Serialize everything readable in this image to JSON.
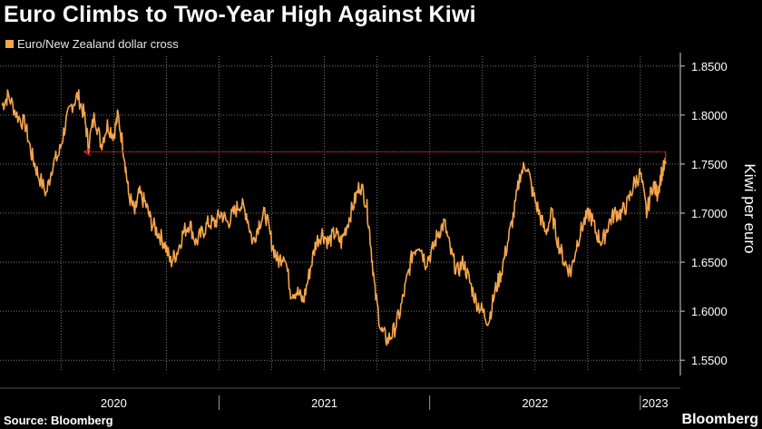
{
  "header": {
    "title": "Euro Climbs to Two-Year High Against Kiwi",
    "legend_label": "Euro/New Zealand dollar cross"
  },
  "footer": {
    "source": "Source: Bloomberg",
    "brand": "Bloomberg"
  },
  "colors": {
    "background": "#000000",
    "series": "#f5a54a",
    "arrow": "#e0242b",
    "grid": "#7a7a7a",
    "text": "#ffffff"
  },
  "chart_data": {
    "type": "line",
    "title": "Euro Climbs to Two-Year High Against Kiwi",
    "ylabel": "Kiwi per euro",
    "xlabel": "",
    "ylim": [
      1.54,
      1.86
    ],
    "xlim": [
      2019.96,
      2023.19
    ],
    "y_ticks": [
      1.55,
      1.6,
      1.65,
      1.7,
      1.75,
      1.8,
      1.85
    ],
    "y_tick_labels": [
      "1.5500",
      "1.6000",
      "1.6500",
      "1.7000",
      "1.7500",
      "1.8000",
      "1.8500"
    ],
    "x_tick_labels": [
      "2020",
      "2021",
      "2022",
      "2023"
    ],
    "x_tick_centers": [
      2020.5,
      2021.5,
      2022.5,
      2023.07
    ],
    "x_year_boundaries": [
      2021.0,
      2022.0,
      2023.0
    ],
    "grid": "horizontal dotted and vertical dotted",
    "y_axis_position": "right",
    "series": [
      {
        "name": "Euro/New Zealand dollar cross",
        "color": "#f5a54a",
        "x": [
          2019.97,
          2020.0,
          2020.04,
          2020.08,
          2020.11,
          2020.14,
          2020.18,
          2020.21,
          2020.24,
          2020.27,
          2020.3,
          2020.33,
          2020.36,
          2020.38,
          2020.41,
          2020.44,
          2020.47,
          2020.5,
          2020.52,
          2020.55,
          2020.57,
          2020.6,
          2020.62,
          2020.65,
          2020.68,
          2020.71,
          2020.74,
          2020.77,
          2020.8,
          2020.83,
          2020.86,
          2020.89,
          2020.92,
          2020.95,
          2020.98,
          2021.01,
          2021.04,
          2021.07,
          2021.1,
          2021.13,
          2021.16,
          2021.19,
          2021.22,
          2021.25,
          2021.28,
          2021.31,
          2021.34,
          2021.37,
          2021.4,
          2021.43,
          2021.46,
          2021.49,
          2021.52,
          2021.55,
          2021.58,
          2021.61,
          2021.64,
          2021.67,
          2021.7,
          2021.72,
          2021.74,
          2021.77,
          2021.8,
          2021.83,
          2021.86,
          2021.89,
          2021.92,
          2021.95,
          2021.98,
          2022.01,
          2022.04,
          2022.07,
          2022.1,
          2022.13,
          2022.16,
          2022.19,
          2022.22,
          2022.25,
          2022.28,
          2022.31,
          2022.34,
          2022.37,
          2022.4,
          2022.43,
          2022.46,
          2022.49,
          2022.52,
          2022.55,
          2022.58,
          2022.61,
          2022.64,
          2022.67,
          2022.7,
          2022.73,
          2022.76,
          2022.79,
          2022.82,
          2022.85,
          2022.88,
          2022.91,
          2022.94,
          2022.97,
          2023.0,
          2023.03,
          2023.06,
          2023.08,
          2023.1,
          2023.12
        ],
        "values": [
          1.81,
          1.82,
          1.8,
          1.79,
          1.76,
          1.74,
          1.72,
          1.75,
          1.76,
          1.79,
          1.81,
          1.82,
          1.8,
          1.77,
          1.8,
          1.77,
          1.79,
          1.78,
          1.8,
          1.76,
          1.72,
          1.7,
          1.72,
          1.71,
          1.69,
          1.68,
          1.67,
          1.65,
          1.66,
          1.68,
          1.69,
          1.67,
          1.68,
          1.69,
          1.69,
          1.7,
          1.69,
          1.7,
          1.71,
          1.7,
          1.67,
          1.69,
          1.7,
          1.67,
          1.65,
          1.66,
          1.62,
          1.62,
          1.61,
          1.64,
          1.67,
          1.68,
          1.67,
          1.68,
          1.67,
          1.69,
          1.71,
          1.73,
          1.71,
          1.67,
          1.62,
          1.58,
          1.57,
          1.58,
          1.6,
          1.63,
          1.66,
          1.67,
          1.65,
          1.66,
          1.68,
          1.69,
          1.66,
          1.64,
          1.65,
          1.63,
          1.61,
          1.6,
          1.59,
          1.62,
          1.64,
          1.67,
          1.7,
          1.74,
          1.75,
          1.72,
          1.7,
          1.68,
          1.7,
          1.67,
          1.65,
          1.64,
          1.67,
          1.69,
          1.7,
          1.68,
          1.67,
          1.69,
          1.7,
          1.7,
          1.71,
          1.73,
          1.74,
          1.7,
          1.73,
          1.72,
          1.74,
          1.75
        ]
      }
    ],
    "annotations": [
      {
        "type": "horizontal-arrow",
        "y": 1.7625,
        "x_from": 2023.12,
        "x_to": 2020.36,
        "direction": "left"
      }
    ]
  }
}
